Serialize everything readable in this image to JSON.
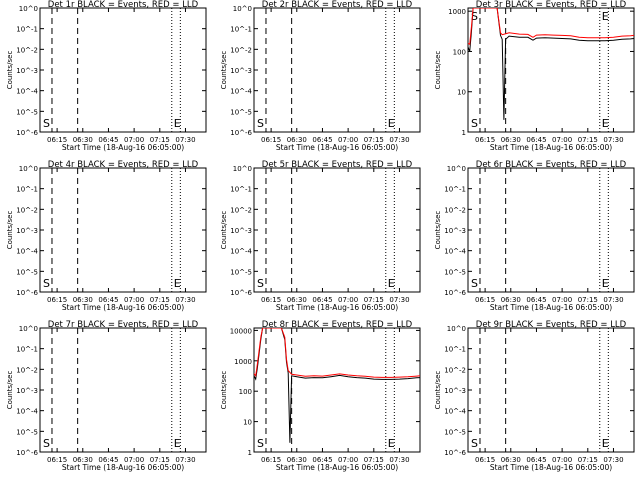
{
  "page": {
    "background": "#ffffff",
    "line_color": "#000000",
    "lld_color": "#ff0000"
  },
  "chart_data": [
    {
      "type": "line",
      "title": "Det 1r BLACK = Events, RED = LLD",
      "xlabel": "Start Time (18-Aug-16 06:05:00)",
      "ylabel": "Counts/sec",
      "x_ticks": [
        "06:15",
        "06:30",
        "06:45",
        "07:00",
        "07:15",
        "07:30"
      ],
      "x_range": [
        "06:05",
        "07:42"
      ],
      "y_scale": "log",
      "y_ticks": [
        "10^0",
        "10^-1",
        "10^-2",
        "10^-3",
        "10^-4",
        "10^-5",
        "10^-6"
      ],
      "y_range": [
        1e-06,
        1.0
      ],
      "markers": [
        {
          "label": "S",
          "time": "06:12",
          "style": "dashed",
          "label_side": "left"
        },
        {
          "label": "",
          "time": "06:27",
          "style": "dashed"
        },
        {
          "label": "E",
          "time": "07:22",
          "style": "dotted",
          "label_side": "right"
        },
        {
          "label": "",
          "time": "07:27",
          "style": "dotted"
        }
      ],
      "series": []
    },
    {
      "type": "line",
      "title": "Det 2r BLACK = Events, RED = LLD",
      "xlabel": "Start Time (18-Aug-16 06:05:00)",
      "ylabel": "Counts/sec",
      "x_ticks": [
        "06:15",
        "06:30",
        "06:45",
        "07:00",
        "07:15",
        "07:30"
      ],
      "x_range": [
        "06:05",
        "07:42"
      ],
      "y_scale": "log",
      "y_ticks": [
        "10^0",
        "10^-1",
        "10^-2",
        "10^-3",
        "10^-4",
        "10^-5",
        "10^-6"
      ],
      "y_range": [
        1e-06,
        1.0
      ],
      "markers": [
        {
          "label": "S",
          "time": "06:12",
          "style": "dashed",
          "label_side": "left"
        },
        {
          "label": "",
          "time": "06:27",
          "style": "dashed"
        },
        {
          "label": "E",
          "time": "07:22",
          "style": "dotted",
          "label_side": "right"
        },
        {
          "label": "",
          "time": "07:27",
          "style": "dotted"
        }
      ],
      "series": []
    },
    {
      "type": "line",
      "title": "Det 3r BLACK = Events, RED = LLD",
      "xlabel": "Start Time (18-Aug-16 06:05:00)",
      "ylabel": "Counts/sec",
      "x_ticks": [
        "06:15",
        "06:30",
        "06:45",
        "07:00",
        "07:15",
        "07:30"
      ],
      "x_range": [
        "06:05",
        "07:42"
      ],
      "y_scale": "log",
      "y_ticks": [
        "1",
        "10",
        "100",
        "1000"
      ],
      "y_range": [
        1,
        1200
      ],
      "markers": [
        {
          "label": "S",
          "time": "06:12",
          "style": "dashed",
          "label_side": "left"
        },
        {
          "label": "",
          "time": "06:27",
          "style": "dashed"
        },
        {
          "label": "E",
          "time": "07:22",
          "style": "dotted",
          "label_side": "right"
        },
        {
          "label": "",
          "time": "07:27",
          "style": "dotted"
        }
      ],
      "series": [
        {
          "color": "#000000",
          "points": [
            [
              "06:05",
              130
            ],
            [
              "06:06",
              100
            ],
            [
              "06:07",
              300
            ],
            [
              "06:08",
              1500
            ],
            [
              "06:22",
              1500
            ],
            [
              "06:24",
              250
            ],
            [
              "06:25",
              200
            ],
            [
              "06:26",
              2
            ],
            [
              "06:27",
              200
            ],
            [
              "06:29",
              240
            ],
            [
              "06:35",
              225
            ],
            [
              "06:40",
              225
            ],
            [
              "06:43",
              190
            ],
            [
              "06:45",
              215
            ],
            [
              "06:50",
              220
            ],
            [
              "06:55",
              215
            ],
            [
              "07:00",
              210
            ],
            [
              "07:05",
              205
            ],
            [
              "07:10",
              190
            ],
            [
              "07:15",
              185
            ],
            [
              "07:20",
              185
            ],
            [
              "07:25",
              185
            ],
            [
              "07:30",
              190
            ],
            [
              "07:35",
              200
            ],
            [
              "07:40",
              205
            ],
            [
              "07:42",
              210
            ]
          ]
        },
        {
          "color": "#ff0000",
          "points": [
            [
              "06:05",
              160
            ],
            [
              "06:06",
              150
            ],
            [
              "06:07",
              400
            ],
            [
              "06:08",
              1500
            ],
            [
              "06:22",
              1500
            ],
            [
              "06:24",
              290
            ],
            [
              "06:25",
              260
            ],
            [
              "06:29",
              290
            ],
            [
              "06:35",
              270
            ],
            [
              "06:40",
              265
            ],
            [
              "06:43",
              225
            ],
            [
              "06:45",
              255
            ],
            [
              "06:50",
              260
            ],
            [
              "06:55",
              255
            ],
            [
              "07:00",
              250
            ],
            [
              "07:05",
              245
            ],
            [
              "07:10",
              225
            ],
            [
              "07:15",
              220
            ],
            [
              "07:20",
              220
            ],
            [
              "07:25",
              220
            ],
            [
              "07:30",
              225
            ],
            [
              "07:35",
              240
            ],
            [
              "07:40",
              245
            ],
            [
              "07:42",
              250
            ]
          ]
        }
      ]
    },
    {
      "type": "line",
      "title": "Det 4r BLACK = Events, RED = LLD",
      "xlabel": "Start Time (18-Aug-16 06:05:00)",
      "ylabel": "Counts/sec",
      "x_ticks": [
        "06:15",
        "06:30",
        "06:45",
        "07:00",
        "07:15",
        "07:30"
      ],
      "x_range": [
        "06:05",
        "07:42"
      ],
      "y_scale": "log",
      "y_ticks": [
        "10^0",
        "10^-1",
        "10^-2",
        "10^-3",
        "10^-4",
        "10^-5",
        "10^-6"
      ],
      "y_range": [
        1e-06,
        1.0
      ],
      "markers": [
        {
          "label": "S",
          "time": "06:12",
          "style": "dashed",
          "label_side": "left"
        },
        {
          "label": "",
          "time": "06:27",
          "style": "dashed"
        },
        {
          "label": "E",
          "time": "07:22",
          "style": "dotted",
          "label_side": "right"
        },
        {
          "label": "",
          "time": "07:27",
          "style": "dotted"
        }
      ],
      "series": []
    },
    {
      "type": "line",
      "title": "Det 5r BLACK = Events, RED = LLD",
      "xlabel": "Start Time (18-Aug-16 06:05:00)",
      "ylabel": "Counts/sec",
      "x_ticks": [
        "06:15",
        "06:30",
        "06:45",
        "07:00",
        "07:15",
        "07:30"
      ],
      "x_range": [
        "06:05",
        "07:42"
      ],
      "y_scale": "log",
      "y_ticks": [
        "10^0",
        "10^-1",
        "10^-2",
        "10^-3",
        "10^-4",
        "10^-5",
        "10^-6"
      ],
      "y_range": [
        1e-06,
        1.0
      ],
      "markers": [
        {
          "label": "S",
          "time": "06:12",
          "style": "dashed",
          "label_side": "left"
        },
        {
          "label": "",
          "time": "06:27",
          "style": "dashed"
        },
        {
          "label": "E",
          "time": "07:22",
          "style": "dotted",
          "label_side": "right"
        },
        {
          "label": "",
          "time": "07:27",
          "style": "dotted"
        }
      ],
      "series": []
    },
    {
      "type": "line",
      "title": "Det 6r BLACK = Events, RED = LLD",
      "xlabel": "Start Time (18-Aug-16 06:05:00)",
      "ylabel": "Counts/sec",
      "x_ticks": [
        "06:15",
        "06:30",
        "06:45",
        "07:00",
        "07:15",
        "07:30"
      ],
      "x_range": [
        "06:05",
        "07:42"
      ],
      "y_scale": "log",
      "y_ticks": [
        "10^0",
        "10^-1",
        "10^-2",
        "10^-3",
        "10^-4",
        "10^-5",
        "10^-6"
      ],
      "y_range": [
        1e-06,
        1.0
      ],
      "markers": [
        {
          "label": "S",
          "time": "06:12",
          "style": "dashed",
          "label_side": "left"
        },
        {
          "label": "",
          "time": "06:27",
          "style": "dashed"
        },
        {
          "label": "E",
          "time": "07:22",
          "style": "dotted",
          "label_side": "right"
        },
        {
          "label": "",
          "time": "07:27",
          "style": "dotted"
        }
      ],
      "series": []
    },
    {
      "type": "line",
      "title": "Det 7r BLACK = Events, RED = LLD",
      "xlabel": "Start Time (18-Aug-16 06:05:00)",
      "ylabel": "Counts/sec",
      "x_ticks": [
        "06:15",
        "06:30",
        "06:45",
        "07:00",
        "07:15",
        "07:30"
      ],
      "x_range": [
        "06:05",
        "07:42"
      ],
      "y_scale": "log",
      "y_ticks": [
        "10^0",
        "10^-1",
        "10^-2",
        "10^-3",
        "10^-4",
        "10^-5",
        "10^-6"
      ],
      "y_range": [
        1e-06,
        1.0
      ],
      "markers": [
        {
          "label": "S",
          "time": "06:12",
          "style": "dashed",
          "label_side": "left"
        },
        {
          "label": "",
          "time": "06:27",
          "style": "dashed"
        },
        {
          "label": "E",
          "time": "07:22",
          "style": "dotted",
          "label_side": "right"
        },
        {
          "label": "",
          "time": "07:27",
          "style": "dotted"
        }
      ],
      "series": []
    },
    {
      "type": "line",
      "title": "Det 8r BLACK = Events, RED = LLD",
      "xlabel": "Start Time (18-Aug-16 06:05:00)",
      "ylabel": "Counts/sec",
      "x_ticks": [
        "06:15",
        "06:30",
        "06:45",
        "07:00",
        "07:15",
        "07:30"
      ],
      "x_range": [
        "06:05",
        "07:42"
      ],
      "y_scale": "log",
      "y_ticks": [
        "1",
        "10",
        "100",
        "1000",
        "10000"
      ],
      "y_range": [
        1,
        12000
      ],
      "markers": [
        {
          "label": "S",
          "time": "06:12",
          "style": "dashed",
          "label_side": "left"
        },
        {
          "label": "",
          "time": "06:27",
          "style": "dashed"
        },
        {
          "label": "E",
          "time": "07:22",
          "style": "dotted",
          "label_side": "right"
        },
        {
          "label": "",
          "time": "07:27",
          "style": "dotted"
        }
      ],
      "series": [
        {
          "color": "#000000",
          "points": [
            [
              "06:05",
              320
            ],
            [
              "06:06",
              250
            ],
            [
              "06:07",
              600
            ],
            [
              "06:09",
              5000
            ],
            [
              "06:10",
              14000
            ],
            [
              "06:21",
              14000
            ],
            [
              "06:23",
              5000
            ],
            [
              "06:24",
              900
            ],
            [
              "06:25",
              400
            ],
            [
              "06:26",
              2
            ],
            [
              "06:27",
              320
            ],
            [
              "06:30",
              300
            ],
            [
              "06:35",
              270
            ],
            [
              "06:40",
              280
            ],
            [
              "06:45",
              275
            ],
            [
              "06:50",
              300
            ],
            [
              "06:55",
              330
            ],
            [
              "07:00",
              300
            ],
            [
              "07:05",
              280
            ],
            [
              "07:10",
              270
            ],
            [
              "07:15",
              250
            ],
            [
              "07:20",
              245
            ],
            [
              "07:25",
              245
            ],
            [
              "07:30",
              250
            ],
            [
              "07:35",
              260
            ],
            [
              "07:40",
              275
            ],
            [
              "07:42",
              280
            ]
          ]
        },
        {
          "color": "#ff0000",
          "points": [
            [
              "06:05",
              380
            ],
            [
              "06:06",
              320
            ],
            [
              "06:07",
              800
            ],
            [
              "06:09",
              6000
            ],
            [
              "06:10",
              14000
            ],
            [
              "06:21",
              14000
            ],
            [
              "06:23",
              6000
            ],
            [
              "06:24",
              1100
            ],
            [
              "06:25",
              480
            ],
            [
              "06:27",
              360
            ],
            [
              "06:30",
              340
            ],
            [
              "06:35",
              310
            ],
            [
              "06:40",
              320
            ],
            [
              "06:45",
              315
            ],
            [
              "06:50",
              340
            ],
            [
              "06:55",
              370
            ],
            [
              "07:00",
              340
            ],
            [
              "07:05",
              320
            ],
            [
              "07:10",
              310
            ],
            [
              "07:15",
              290
            ],
            [
              "07:20",
              285
            ],
            [
              "07:25",
              285
            ],
            [
              "07:30",
              290
            ],
            [
              "07:35",
              300
            ],
            [
              "07:40",
              315
            ],
            [
              "07:42",
              320
            ]
          ]
        }
      ]
    },
    {
      "type": "line",
      "title": "Det 9r BLACK = Events, RED = LLD",
      "xlabel": "Start Time (18-Aug-16 06:05:00)",
      "ylabel": "Counts/sec",
      "x_ticks": [
        "06:15",
        "06:30",
        "06:45",
        "07:00",
        "07:15",
        "07:30"
      ],
      "x_range": [
        "06:05",
        "07:42"
      ],
      "y_scale": "log",
      "y_ticks": [
        "10^0",
        "10^-1",
        "10^-2",
        "10^-3",
        "10^-4",
        "10^-5",
        "10^-6"
      ],
      "y_range": [
        1e-06,
        1.0
      ],
      "markers": [
        {
          "label": "S",
          "time": "06:12",
          "style": "dashed",
          "label_side": "left"
        },
        {
          "label": "",
          "time": "06:27",
          "style": "dashed"
        },
        {
          "label": "E",
          "time": "07:22",
          "style": "dotted",
          "label_side": "right"
        },
        {
          "label": "",
          "time": "07:27",
          "style": "dotted"
        }
      ],
      "series": []
    }
  ]
}
